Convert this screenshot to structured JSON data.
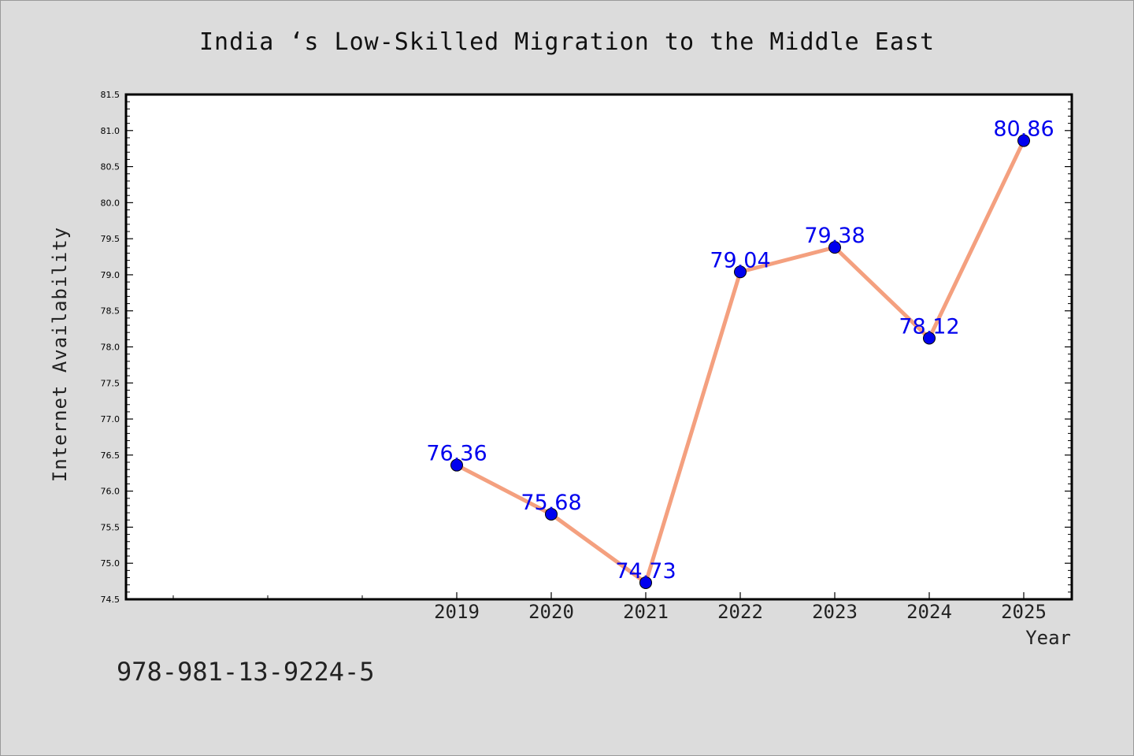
{
  "chart_data": {
    "type": "line",
    "title": "India ‘s Low-Skilled Migration to the Middle East",
    "xlabel": "Year",
    "ylabel": "Internet Availability",
    "x": [
      "2019",
      "2020",
      "2021",
      "2022",
      "2023",
      "2024",
      "2025"
    ],
    "y": [
      76.36,
      75.68,
      74.73,
      79.04,
      79.38,
      78.12,
      80.86
    ],
    "data_labels": [
      "76.36",
      "75.68",
      "74.73",
      "79.04",
      "79.38",
      "78.12",
      "80.86"
    ],
    "yticks": [
      "74.5",
      "75.0",
      "75.5",
      "76.0",
      "76.5",
      "77.0",
      "77.5",
      "78.0",
      "78.5",
      "79.0",
      "79.5",
      "80.0",
      "80.5",
      "81.0",
      "81.5"
    ],
    "ylim": [
      74.5,
      81.5
    ],
    "grid": false,
    "colors": {
      "line": "#f4a07f",
      "marker": "#0000ee",
      "label": "#0000ee",
      "plot_bg": "#ffffff",
      "page_bg": "#dcdcdc"
    }
  },
  "footer": {
    "code": "978-981-13-9224-5"
  }
}
